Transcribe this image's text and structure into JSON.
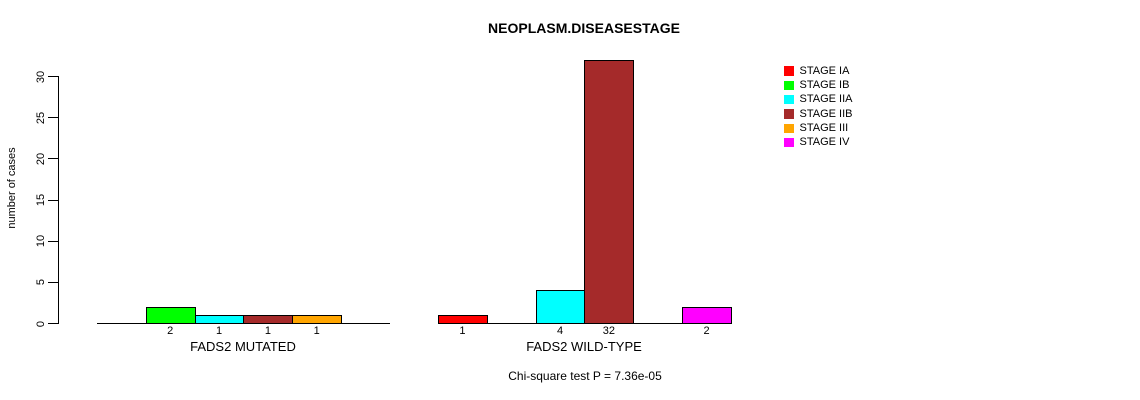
{
  "chart_data": {
    "type": "bar",
    "title": "NEOPLASM.DISEASESTAGE",
    "ylabel": "number of cases",
    "xlabel": "",
    "ylim": [
      0,
      30
    ],
    "yticks": [
      0,
      5,
      10,
      15,
      20,
      25,
      30
    ],
    "grid": false,
    "legend_position": "right",
    "series_labels": [
      "STAGE IA",
      "STAGE IB",
      "STAGE IIA",
      "STAGE IIB",
      "STAGE III",
      "STAGE IV"
    ],
    "series_colors": [
      "#FF0000",
      "#00FF00",
      "#00FFFF",
      "#A52A2A",
      "#FFA500",
      "#FF00FF"
    ],
    "legend": [
      {
        "label": "STAGE IA",
        "color": "#FF0000"
      },
      {
        "label": "STAGE IB",
        "color": "#00FF00"
      },
      {
        "label": "STAGE IIA",
        "color": "#00FFFF"
      },
      {
        "label": "STAGE IIB",
        "color": "#A52A2A"
      },
      {
        "label": "STAGE III",
        "color": "#FFA500"
      },
      {
        "label": "STAGE IV",
        "color": "#FF00FF"
      }
    ],
    "groups": [
      {
        "label": "FADS2 MUTATED",
        "values": [
          0,
          2,
          1,
          1,
          1,
          0
        ]
      },
      {
        "label": "FADS2 WILD-TYPE",
        "values": [
          1,
          0,
          4,
          32,
          0,
          2
        ]
      }
    ],
    "annotation": "Chi-square test P = 7.36e-05"
  }
}
